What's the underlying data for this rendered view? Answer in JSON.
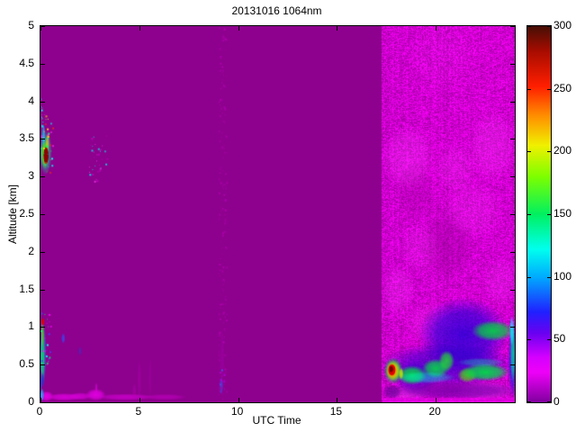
{
  "figure": {
    "title": "20131016 1064nm",
    "xlabel": "UTC Time",
    "ylabel": "Altitude [km]"
  },
  "chart_data": {
    "type": "heatmap",
    "title": "20131016 1064nm",
    "xlabel": "UTC Time",
    "ylabel": "Altitude [km]",
    "xlim": [
      0,
      24
    ],
    "ylim": [
      0,
      5
    ],
    "value_range": [
      0,
      300
    ],
    "x_ticks": [
      0,
      5,
      10,
      15,
      20
    ],
    "y_ticks": [
      0,
      0.5,
      1,
      1.5,
      2,
      2.5,
      3,
      3.5,
      4,
      4.5,
      5
    ],
    "colorbar_ticks": [
      0,
      50,
      100,
      150,
      200,
      250,
      300
    ],
    "colorbar_stops": [
      {
        "v": 0,
        "c": "#80009E"
      },
      {
        "v": 24,
        "c": "#EE00F8"
      },
      {
        "v": 36,
        "c": "#D400FF"
      },
      {
        "v": 55,
        "c": "#6A00F0"
      },
      {
        "v": 72,
        "c": "#2020FF"
      },
      {
        "v": 100,
        "c": "#00AAFF"
      },
      {
        "v": 122,
        "c": "#00FFEE"
      },
      {
        "v": 150,
        "c": "#00F060"
      },
      {
        "v": 180,
        "c": "#7DFF00"
      },
      {
        "v": 205,
        "c": "#F0F000"
      },
      {
        "v": 228,
        "c": "#FF9000"
      },
      {
        "v": 252,
        "c": "#FF1E00"
      },
      {
        "v": 280,
        "c": "#A80C00"
      },
      {
        "v": 300,
        "c": "#460E05"
      }
    ],
    "background_color": "#8E008E",
    "noise_region": {
      "x0": 17.27,
      "x1": 24,
      "y0": 0,
      "y1": 5,
      "base": [
        208,
        0,
        208
      ],
      "variance": 48
    },
    "paint": [
      {
        "t": "noise"
      },
      {
        "t": "blob",
        "x": 20.6,
        "y": 2.1,
        "rx": 1.4,
        "ry": 0.5,
        "c": "#8E008E",
        "a": 0.35
      },
      {
        "t": "blob",
        "x": 19.0,
        "y": 2.8,
        "rx": 1.0,
        "ry": 0.4,
        "c": "#8E008E",
        "a": 0.25
      },
      {
        "t": "blob",
        "x": 18.6,
        "y": 3.25,
        "rx": 1.4,
        "ry": 0.45,
        "c": "#FF46FF",
        "a": 0.3
      },
      {
        "t": "blob",
        "x": 21.0,
        "y": 3.1,
        "rx": 1.1,
        "ry": 0.35,
        "c": "#FF46FF",
        "a": 0.22
      },
      {
        "t": "blob",
        "x": 22.9,
        "y": 3.4,
        "rx": 1.3,
        "ry": 0.5,
        "c": "#FF46FF",
        "a": 0.28
      },
      {
        "t": "blob",
        "x": 19.2,
        "y": 2.05,
        "rx": 1.1,
        "ry": 0.35,
        "c": "#FF46FF",
        "a": 0.2
      },
      {
        "t": "blob",
        "x": 21.9,
        "y": 2.55,
        "rx": 1.6,
        "ry": 0.4,
        "c": "#FF46FF",
        "a": 0.22
      },
      {
        "t": "blob",
        "x": 18.1,
        "y": 1.5,
        "rx": 0.9,
        "ry": 0.35,
        "c": "#FF46FF",
        "a": 0.26
      },
      {
        "t": "blob",
        "x": 23.3,
        "y": 1.6,
        "rx": 1.0,
        "ry": 0.35,
        "c": "#FF46FF",
        "a": 0.22
      },
      {
        "t": "blob",
        "x": 20.3,
        "y": 4.6,
        "rx": 1.8,
        "ry": 0.5,
        "c": "#FF46FF",
        "a": 0.1
      },
      {
        "t": "blob",
        "x": 19.8,
        "y": 1.05,
        "rx": 1.4,
        "ry": 0.3,
        "c": "#FF46FF",
        "a": 0.22
      },
      {
        "t": "blob",
        "x": 22.4,
        "y": 0.15,
        "rx": 1.6,
        "ry": 0.13,
        "c": "#FF46FF",
        "a": 0.5
      },
      {
        "t": "blob",
        "x": 18.6,
        "y": 0.12,
        "rx": 1.2,
        "ry": 0.1,
        "c": "#FF46FF",
        "a": 0.45
      },
      {
        "t": "blob",
        "x": 21.4,
        "y": 0.9,
        "rx": 2.3,
        "ry": 0.5,
        "c": "#1E00D8",
        "a": 0.8
      },
      {
        "t": "blob",
        "x": 20.6,
        "y": 0.5,
        "rx": 3.4,
        "ry": 0.3,
        "c": "#2800CC",
        "a": 0.7
      },
      {
        "t": "blob",
        "x": 19.0,
        "y": 0.33,
        "rx": 1.2,
        "ry": 0.22,
        "c": "#3300D0",
        "a": 0.6
      },
      {
        "t": "blob",
        "x": 23.9,
        "y": 0.55,
        "rx": 0.25,
        "ry": 0.5,
        "c": "#2020E0",
        "a": 0.8
      },
      {
        "t": "blob",
        "x": 21.0,
        "y": 0.16,
        "rx": 3.4,
        "ry": 0.13,
        "c": "#7700AA",
        "a": 0.85
      },
      {
        "t": "blob",
        "x": 18.8,
        "y": 0.36,
        "rx": 0.75,
        "ry": 0.13,
        "c": "#00DC46",
        "a": 0.95
      },
      {
        "t": "blob",
        "x": 20.0,
        "y": 0.45,
        "rx": 0.7,
        "ry": 0.13,
        "c": "#00DC46",
        "a": 0.9
      },
      {
        "t": "blob",
        "x": 20.55,
        "y": 0.55,
        "rx": 0.4,
        "ry": 0.14,
        "c": "#20E030",
        "a": 0.85
      },
      {
        "t": "blob",
        "x": 21.6,
        "y": 0.36,
        "rx": 0.5,
        "ry": 0.1,
        "c": "#55E000",
        "a": 0.8
      },
      {
        "t": "blob",
        "x": 22.5,
        "y": 0.4,
        "rx": 1.25,
        "ry": 0.12,
        "c": "#00DC46",
        "a": 0.95
      },
      {
        "t": "blob",
        "x": 22.9,
        "y": 0.95,
        "rx": 1.1,
        "ry": 0.14,
        "c": "#00D840",
        "a": 0.9
      },
      {
        "t": "blob",
        "x": 23.9,
        "y": 0.65,
        "rx": 0.13,
        "ry": 0.4,
        "c": "#00C8A0",
        "a": 0.9
      },
      {
        "t": "blob",
        "x": 19.5,
        "y": 0.33,
        "rx": 1.5,
        "ry": 0.08,
        "c": "#00FFD8",
        "a": 0.45
      },
      {
        "t": "blob",
        "x": 23.85,
        "y": 0.95,
        "rx": 0.12,
        "ry": 0.2,
        "c": "#00FFFF",
        "a": 0.8
      },
      {
        "t": "blob",
        "x": 22.3,
        "y": 0.53,
        "rx": 1.2,
        "ry": 0.06,
        "c": "#00FFB0",
        "a": 0.35
      },
      {
        "t": "blob",
        "x": 17.8,
        "y": 0.14,
        "rx": 0.5,
        "ry": 0.1,
        "c": "#6A0098",
        "a": 0.8
      },
      {
        "t": "blob",
        "x": 17.85,
        "y": 0.42,
        "rx": 0.5,
        "ry": 0.18,
        "c": "#00D040",
        "a": 0.9
      },
      {
        "t": "blob",
        "x": 17.85,
        "y": 0.42,
        "rx": 0.38,
        "ry": 0.14,
        "c": "#CCE800",
        "a": 0.95
      },
      {
        "t": "blob",
        "x": 17.8,
        "y": 0.42,
        "rx": 0.28,
        "ry": 0.11,
        "c": "#FF8800",
        "a": 0.95
      },
      {
        "t": "blob",
        "x": 17.78,
        "y": 0.43,
        "rx": 0.2,
        "ry": 0.08,
        "c": "#E00000",
        "a": 1,
        "hard": true
      },
      {
        "t": "blob",
        "x": 17.75,
        "y": 0.44,
        "rx": 0.1,
        "ry": 0.045,
        "c": "#700000",
        "a": 1,
        "hard": true
      },
      {
        "t": "blob",
        "x": 18.25,
        "y": 0.38,
        "rx": 0.12,
        "ry": 0.08,
        "c": "#CCE800",
        "a": 0.9
      },
      {
        "t": "rect",
        "x0": 17.3,
        "x1": 24,
        "y0": 0,
        "y1": 0.06,
        "c": "#E000E0",
        "a": 0.8
      },
      {
        "t": "blob",
        "x": 0.3,
        "y": 0.08,
        "rx": 0.35,
        "ry": 0.07,
        "c": "#E800E8",
        "a": 0.95
      },
      {
        "t": "blob",
        "x": 1.2,
        "y": 0.07,
        "rx": 0.9,
        "ry": 0.05,
        "c": "#DD00DD",
        "a": 0.9
      },
      {
        "t": "blob",
        "x": 2.0,
        "y": 0.08,
        "rx": 0.6,
        "ry": 0.05,
        "c": "#D800D8",
        "a": 0.85
      },
      {
        "t": "blob",
        "x": 2.8,
        "y": 0.1,
        "rx": 0.5,
        "ry": 0.08,
        "c": "#E800E8",
        "a": 0.9
      },
      {
        "t": "blob",
        "x": 2.82,
        "y": 0.18,
        "rx": 0.07,
        "ry": 0.09,
        "c": "#D800D8",
        "a": 0.8
      },
      {
        "t": "blob",
        "x": 4.3,
        "y": 0.07,
        "rx": 1.5,
        "ry": 0.045,
        "c": "#D000D0",
        "a": 0.8
      },
      {
        "t": "blob",
        "x": 6.3,
        "y": 0.07,
        "rx": 1.1,
        "ry": 0.04,
        "c": "#C400C4",
        "a": 0.65
      },
      {
        "t": "blob",
        "x": 0.08,
        "y": 0.1,
        "rx": 0.1,
        "ry": 0.09,
        "c": "#00C8FF",
        "a": 0.8
      },
      {
        "t": "blob",
        "x": 0.05,
        "y": 0.25,
        "rx": 0.07,
        "ry": 0.1,
        "c": "#2040E0",
        "a": 0.7
      },
      {
        "t": "blob",
        "x": 0.12,
        "y": 0.65,
        "rx": 0.17,
        "ry": 0.45,
        "c": "#00A8E8",
        "a": 0.7
      },
      {
        "t": "blob",
        "x": 0.1,
        "y": 0.6,
        "rx": 0.1,
        "ry": 0.34,
        "c": "#00E060",
        "a": 0.9
      },
      {
        "t": "blob",
        "x": 0.1,
        "y": 0.9,
        "rx": 0.08,
        "ry": 0.18,
        "c": "#60E000",
        "a": 0.8
      },
      {
        "t": "blob",
        "x": 0.12,
        "y": 1.07,
        "rx": 0.07,
        "ry": 0.05,
        "c": "#E00000",
        "a": 0.95,
        "hard": true
      },
      {
        "t": "blob",
        "x": 0.1,
        "y": 0.3,
        "rx": 0.09,
        "ry": 0.1,
        "c": "#2030D8",
        "a": 0.8
      },
      {
        "t": "blob",
        "x": 0.25,
        "y": 3.32,
        "rx": 0.33,
        "ry": 0.3,
        "c": "#00D8A8",
        "a": 0.75
      },
      {
        "t": "blob",
        "x": 0.22,
        "y": 3.3,
        "rx": 0.22,
        "ry": 0.2,
        "c": "#66E800",
        "a": 0.9
      },
      {
        "t": "blob",
        "x": 0.35,
        "y": 3.45,
        "rx": 0.1,
        "ry": 0.12,
        "c": "#FFE000",
        "a": 0.6
      },
      {
        "t": "blob",
        "x": 0.28,
        "y": 3.28,
        "rx": 0.14,
        "ry": 0.12,
        "c": "#8B0000",
        "a": 1,
        "hard": true
      },
      {
        "t": "blob",
        "x": 0.15,
        "y": 3.55,
        "rx": 0.1,
        "ry": 0.15,
        "c": "#00E0FF",
        "a": 0.7
      },
      {
        "t": "blob",
        "x": 1.15,
        "y": 0.85,
        "rx": 0.1,
        "ry": 0.07,
        "c": "#3848F0",
        "a": 0.85
      },
      {
        "t": "blob",
        "x": 2.0,
        "y": 0.68,
        "rx": 0.08,
        "ry": 0.06,
        "c": "#3333CC",
        "a": 0.7
      },
      {
        "t": "blob",
        "x": 9.15,
        "y": 0.22,
        "rx": 0.1,
        "ry": 0.12,
        "c": "#4444E0",
        "a": 0.8
      },
      {
        "t": "blob",
        "x": 5.0,
        "y": 0.3,
        "rx": 0.1,
        "ry": 0.28,
        "c": "#AB00AB",
        "a": 0.5
      },
      {
        "t": "blob",
        "x": 5.55,
        "y": 0.33,
        "rx": 0.08,
        "ry": 0.3,
        "c": "#A800A8",
        "a": 0.4
      },
      {
        "t": "blob",
        "x": 4.75,
        "y": 0.15,
        "rx": 0.1,
        "ry": 0.1,
        "c": "#B800B8",
        "a": 0.45
      },
      {
        "t": "blob",
        "x": 9.2,
        "y": 0.6,
        "rx": 0.1,
        "ry": 0.35,
        "c": "#A400B4",
        "a": 0.4
      },
      {
        "t": "spk",
        "x0": 0,
        "x1": 0.6,
        "y0": 3.05,
        "y1": 3.85,
        "n": 45,
        "s": 2,
        "cs": [
          "#FF2BFF",
          "#00FFFF",
          "#FFE000",
          "#FF3000",
          "#00FF66"
        ]
      },
      {
        "t": "spk",
        "x0": 0,
        "x1": 0.12,
        "y0": 3.6,
        "y1": 4.05,
        "n": 10,
        "s": 2,
        "cs": [
          "#FF2BFF",
          "#00FFFF"
        ]
      },
      {
        "t": "spk",
        "x0": 2.45,
        "x1": 3.35,
        "y0": 2.9,
        "y1": 3.55,
        "n": 35,
        "s": 2,
        "cs": [
          "#E838E8",
          "#C400C4",
          "#00E8E8"
        ]
      },
      {
        "t": "spk",
        "x0": 0,
        "x1": 0.5,
        "y0": 0.45,
        "y1": 1.2,
        "n": 25,
        "s": 2,
        "cs": [
          "#00FFFF",
          "#4040FF",
          "#FF00FF",
          "#00FF66"
        ]
      },
      {
        "t": "spk",
        "x0": 8.98,
        "x1": 9.4,
        "y0": 0,
        "y1": 5,
        "n": 280,
        "s": 2,
        "cs": [
          "#A400A4",
          "#B000B0",
          "#9A009A"
        ]
      },
      {
        "t": "spk",
        "x0": 9.05,
        "x1": 9.3,
        "y0": 0.1,
        "y1": 0.45,
        "n": 12,
        "s": 2,
        "cs": [
          "#5050E8",
          "#B400E0"
        ]
      },
      {
        "t": "spk",
        "x0": 17.3,
        "x1": 24,
        "y0": 0,
        "y1": 0.07,
        "n": 120,
        "s": 2,
        "cs": [
          "#FF00FF",
          "#D000D0"
        ]
      }
    ]
  }
}
